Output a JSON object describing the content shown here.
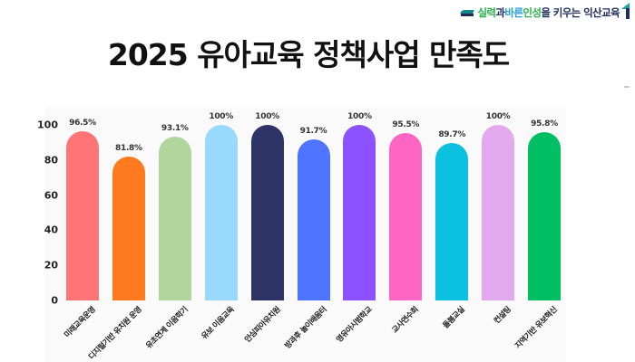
{
  "header": {
    "brand_slogan": {
      "part1": "실력",
      "part2": "과 ",
      "part3": "바른",
      "part4": " 인성",
      "part5": "을 키우는 익산교육"
    },
    "title": "2025 유아교육 정책사업 만족도"
  },
  "chart_data": {
    "type": "bar",
    "title": "2025 유아교육 정책사업 만족도",
    "xlabel": "",
    "ylabel": "",
    "ylim": [
      0,
      100
    ],
    "yticks": [
      "0",
      "20",
      "40",
      "60",
      "80",
      "100"
    ],
    "grid": false,
    "legend": null,
    "categories": [
      "미래교육운영",
      "디지털기반 유치원 운영",
      "유초연계 이음학기",
      "유보 이음교육",
      "안심피아유치원",
      "방과후 놀이배움터",
      "영유아시범학교",
      "교사연수회",
      "돌봄교실",
      "컨설팅",
      "지역기반 유보혁신"
    ],
    "values": [
      96.5,
      81.8,
      93.1,
      100,
      100,
      91.7,
      100,
      95.5,
      89.7,
      100,
      95.8
    ],
    "value_labels": [
      "96.5%",
      "81.8%",
      "93.1%",
      "100%",
      "100%",
      "91.7%",
      "100%",
      "95.5%",
      "89.7%",
      "100%",
      "95.8%"
    ],
    "colors": [
      "#ff7575",
      "#ff7a1f",
      "#b0d69e",
      "#99d9fd",
      "#2f3467",
      "#4f74ff",
      "#8c52ff",
      "#ff66c4",
      "#0cc0df",
      "#e3a9ef",
      "#00bf63"
    ]
  }
}
